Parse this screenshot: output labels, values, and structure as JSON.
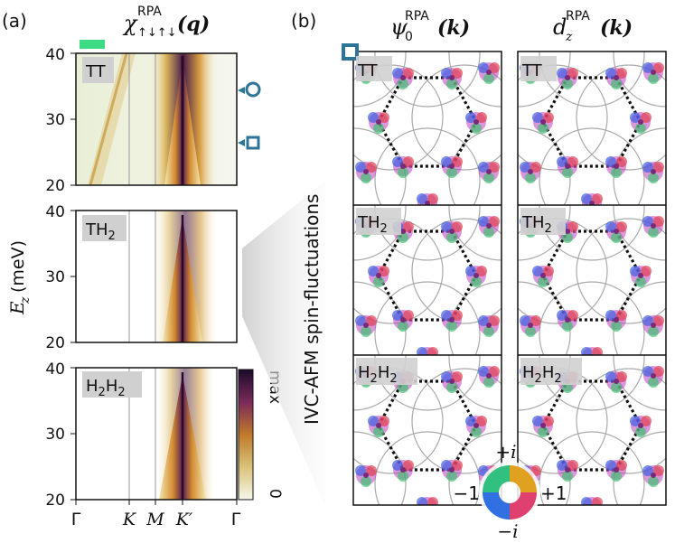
{
  "panel_a": {
    "label": "(a)",
    "title_main": "χ",
    "title_sup": "RPA",
    "title_sub": "↑↓↑↓",
    "title_arg": "(q)",
    "ylabel_main": "E",
    "ylabel_sub": "z",
    "ylabel_unit": "(meV)",
    "subplots": [
      {
        "tag": "TT",
        "tag_sub": "",
        "tag_tail": "",
        "yticks": [
          "20",
          "30",
          "40"
        ]
      },
      {
        "tag": "TH",
        "tag_sub": "2",
        "tag_tail": "",
        "yticks": [
          "20",
          "30",
          "40"
        ]
      },
      {
        "tag": "H",
        "tag_sub": "2",
        "tag_tail": "H",
        "tag_sub2": "2",
        "yticks": [
          "20",
          "30",
          "40"
        ]
      }
    ],
    "xticks": [
      "Γ",
      "K",
      "M",
      "K′",
      "Γ"
    ],
    "colorbar": {
      "max_label": "max",
      "min_label": "0"
    }
  },
  "panel_b": {
    "label": "(b)",
    "side_label": "IVC-AFM spin-fluctuations",
    "col1_title_main": "ψ",
    "col1_title_sub": "0",
    "col1_title_sup": "RPA",
    "col1_title_arg": "(k)",
    "col2_title_main": "d",
    "col2_title_sub": "z",
    "col2_title_sup": "RPA",
    "col2_title_arg": "(k)",
    "row_tags": [
      {
        "tag": "TT",
        "tag_sub": ""
      },
      {
        "tag": "TH",
        "tag_sub": "2"
      },
      {
        "tag": "H",
        "tag_sub": "2",
        "tag_tail": "H",
        "tag_sub2": "2"
      }
    ],
    "phase_wheel": {
      "top": "+i",
      "bottom": "−i",
      "left": "−1",
      "right": "+1"
    }
  },
  "chart_data": {
    "type": "heatmap",
    "title": "χ↑↓↑↓ RPA (q)",
    "xlabel": "",
    "ylabel": "E_z (meV)",
    "x_ticks": [
      "Γ",
      "K",
      "M",
      "K′",
      "Γ"
    ],
    "ylim": [
      20,
      40
    ],
    "subplots": [
      "TT",
      "TH2",
      "H2H2"
    ],
    "colorbar_range": [
      "0",
      "max"
    ]
  },
  "colors": {
    "accent_teal": "#2d7497",
    "marker_green": "#3ddc84",
    "tag_bg": "#d0d0d0"
  }
}
